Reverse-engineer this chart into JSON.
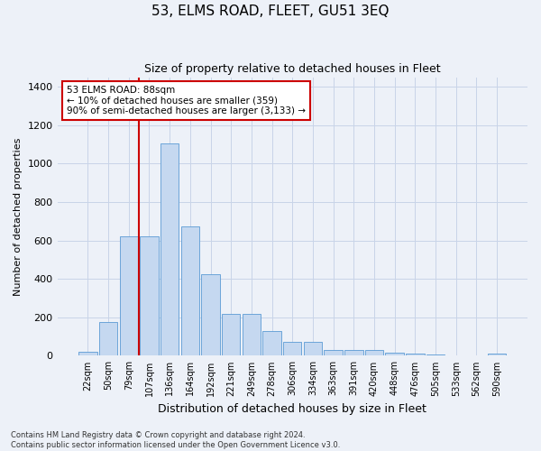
{
  "title": "53, ELMS ROAD, FLEET, GU51 3EQ",
  "subtitle": "Size of property relative to detached houses in Fleet",
  "xlabel": "Distribution of detached houses by size in Fleet",
  "ylabel": "Number of detached properties",
  "footer_line1": "Contains HM Land Registry data © Crown copyright and database right 2024.",
  "footer_line2": "Contains public sector information licensed under the Open Government Licence v3.0.",
  "bar_categories": [
    "22sqm",
    "50sqm",
    "79sqm",
    "107sqm",
    "136sqm",
    "164sqm",
    "192sqm",
    "221sqm",
    "249sqm",
    "278sqm",
    "306sqm",
    "334sqm",
    "363sqm",
    "391sqm",
    "420sqm",
    "448sqm",
    "476sqm",
    "505sqm",
    "533sqm",
    "562sqm",
    "590sqm"
  ],
  "bar_values": [
    20,
    175,
    620,
    620,
    1105,
    675,
    425,
    220,
    220,
    130,
    73,
    73,
    32,
    32,
    28,
    18,
    13,
    5,
    0,
    0,
    13
  ],
  "bar_color": "#c5d8f0",
  "bar_edge_color": "#5b9bd5",
  "grid_color": "#c8d4e8",
  "background_color": "#edf1f8",
  "vline_x_pos": 2.5,
  "vline_color": "#cc0000",
  "annotation_text": "53 ELMS ROAD: 88sqm\n← 10% of detached houses are smaller (359)\n90% of semi-detached houses are larger (3,133) →",
  "annotation_box_color": "white",
  "annotation_box_edge": "#cc0000",
  "ylim": [
    0,
    1450
  ],
  "yticks": [
    0,
    200,
    400,
    600,
    800,
    1000,
    1200,
    1400
  ],
  "title_fontsize": 11,
  "subtitle_fontsize": 9,
  "xlabel_fontsize": 9,
  "ylabel_fontsize": 8,
  "annotation_fontsize": 7.5,
  "footer_fontsize": 6
}
